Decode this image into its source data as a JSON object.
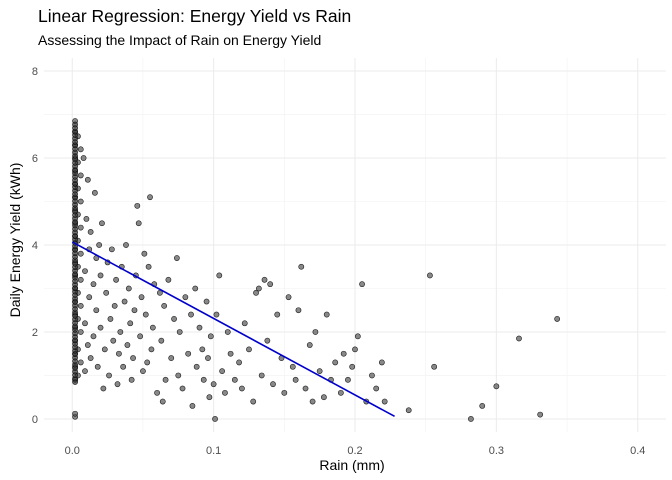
{
  "chart_data": {
    "type": "scatter",
    "title": "Linear Regression: Energy Yield vs Rain",
    "subtitle": "Assessing the Impact of Rain on Energy Yield",
    "xlabel": "Rain (mm)",
    "ylabel": "Daily Energy Yield (kWh)",
    "xlim": [
      -0.02,
      0.42
    ],
    "ylim": [
      -0.3,
      8.3
    ],
    "x_ticks": [
      0.0,
      0.1,
      0.2,
      0.3,
      0.4
    ],
    "x_tick_labels": [
      "0.0",
      "0.1",
      "0.2",
      "0.3",
      "0.4"
    ],
    "y_ticks": [
      0,
      2,
      4,
      6,
      8
    ],
    "y_tick_labels": [
      "0",
      "2",
      "4",
      "6",
      "8"
    ],
    "grid": true,
    "point_color": "#555555",
    "line_color": "#0000cc",
    "regression_line": {
      "x": [
        0.0,
        0.228
      ],
      "y": [
        4.07,
        0.06
      ]
    },
    "series": [
      {
        "points": [
          [
            0.002,
            0.05
          ],
          [
            0.002,
            0.12
          ],
          [
            0.002,
            0.9
          ],
          [
            0.002,
            1.2
          ],
          [
            0.002,
            1.5
          ],
          [
            0.002,
            1.8
          ],
          [
            0.002,
            2.1
          ],
          [
            0.002,
            2.4
          ],
          [
            0.002,
            2.7
          ],
          [
            0.002,
            3.0
          ],
          [
            0.002,
            3.3
          ],
          [
            0.002,
            3.6
          ],
          [
            0.002,
            3.9
          ],
          [
            0.002,
            4.2
          ],
          [
            0.002,
            4.5
          ],
          [
            0.002,
            4.8
          ],
          [
            0.002,
            5.1
          ],
          [
            0.002,
            5.4
          ],
          [
            0.002,
            5.7
          ],
          [
            0.002,
            6.0
          ],
          [
            0.002,
            6.3
          ],
          [
            0.002,
            6.6
          ],
          [
            0.002,
            6.85
          ],
          [
            0.004,
            1.0
          ],
          [
            0.004,
            1.6
          ],
          [
            0.004,
            2.3
          ],
          [
            0.004,
            2.9
          ],
          [
            0.004,
            3.5
          ],
          [
            0.004,
            4.1
          ],
          [
            0.004,
            4.7
          ],
          [
            0.004,
            5.3
          ],
          [
            0.004,
            5.9
          ],
          [
            0.004,
            6.5
          ],
          [
            0.006,
            1.3
          ],
          [
            0.006,
            2.0
          ],
          [
            0.006,
            2.6
          ],
          [
            0.006,
            3.2
          ],
          [
            0.006,
            3.8
          ],
          [
            0.006,
            4.4
          ],
          [
            0.006,
            5.0
          ],
          [
            0.006,
            5.6
          ],
          [
            0.006,
            6.2
          ],
          [
            0.008,
            6.0
          ],
          [
            0.009,
            1.1
          ],
          [
            0.009,
            2.2
          ],
          [
            0.009,
            3.4
          ],
          [
            0.01,
            4.6
          ],
          [
            0.011,
            5.5
          ],
          [
            0.011,
            1.7
          ],
          [
            0.012,
            2.8
          ],
          [
            0.012,
            3.9
          ],
          [
            0.013,
            1.4
          ],
          [
            0.013,
            4.3
          ],
          [
            0.015,
            1.9
          ],
          [
            0.015,
            3.1
          ],
          [
            0.016,
            5.2
          ],
          [
            0.017,
            2.5
          ],
          [
            0.017,
            3.7
          ],
          [
            0.018,
            1.2
          ],
          [
            0.019,
            4.0
          ],
          [
            0.02,
            2.1
          ],
          [
            0.02,
            3.3
          ],
          [
            0.021,
            4.5
          ],
          [
            0.022,
            0.7
          ],
          [
            0.023,
            1.6
          ],
          [
            0.024,
            2.9
          ],
          [
            0.025,
            3.6
          ],
          [
            0.026,
            1.0
          ],
          [
            0.027,
            2.3
          ],
          [
            0.028,
            3.9
          ],
          [
            0.029,
            1.8
          ],
          [
            0.03,
            2.6
          ],
          [
            0.031,
            3.2
          ],
          [
            0.032,
            0.8
          ],
          [
            0.033,
            1.5
          ],
          [
            0.034,
            2.0
          ],
          [
            0.035,
            3.5
          ],
          [
            0.036,
            1.2
          ],
          [
            0.037,
            2.7
          ],
          [
            0.038,
            4.0
          ],
          [
            0.039,
            1.7
          ],
          [
            0.04,
            3.0
          ],
          [
            0.041,
            2.2
          ],
          [
            0.042,
            0.9
          ],
          [
            0.043,
            1.4
          ],
          [
            0.044,
            2.5
          ],
          [
            0.045,
            3.3
          ],
          [
            0.046,
            4.9
          ],
          [
            0.047,
            4.5
          ],
          [
            0.048,
            1.9
          ],
          [
            0.049,
            2.8
          ],
          [
            0.05,
            1.1
          ],
          [
            0.051,
            3.8
          ],
          [
            0.052,
            2.4
          ],
          [
            0.053,
            1.3
          ],
          [
            0.054,
            3.5
          ],
          [
            0.055,
            5.1
          ],
          [
            0.056,
            1.6
          ],
          [
            0.057,
            2.1
          ],
          [
            0.058,
            3.1
          ],
          [
            0.06,
            0.6
          ],
          [
            0.062,
            2.9
          ],
          [
            0.063,
            1.8
          ],
          [
            0.064,
            0.4
          ],
          [
            0.065,
            2.6
          ],
          [
            0.066,
            0.9
          ],
          [
            0.068,
            3.2
          ],
          [
            0.07,
            1.4
          ],
          [
            0.072,
            2.3
          ],
          [
            0.074,
            3.7
          ],
          [
            0.075,
            1.0
          ],
          [
            0.076,
            2.0
          ],
          [
            0.078,
            0.7
          ],
          [
            0.08,
            2.8
          ],
          [
            0.082,
            1.5
          ],
          [
            0.084,
            2.4
          ],
          [
            0.085,
            0.3
          ],
          [
            0.087,
            3.0
          ],
          [
            0.088,
            1.2
          ],
          [
            0.09,
            2.1
          ],
          [
            0.092,
            1.6
          ],
          [
            0.093,
            0.9
          ],
          [
            0.095,
            2.7
          ],
          [
            0.096,
            1.4
          ],
          [
            0.097,
            0.5
          ],
          [
            0.098,
            1.9
          ],
          [
            0.1,
            0.8
          ],
          [
            0.101,
            0.0
          ],
          [
            0.102,
            2.4
          ],
          [
            0.104,
            3.3
          ],
          [
            0.106,
            1.1
          ],
          [
            0.108,
            0.6
          ],
          [
            0.11,
            2.0
          ],
          [
            0.112,
            1.5
          ],
          [
            0.115,
            0.9
          ],
          [
            0.118,
            1.3
          ],
          [
            0.12,
            0.7
          ],
          [
            0.122,
            2.2
          ],
          [
            0.125,
            1.6
          ],
          [
            0.128,
            0.4
          ],
          [
            0.13,
            2.9
          ],
          [
            0.132,
            3.0
          ],
          [
            0.134,
            1.0
          ],
          [
            0.136,
            3.2
          ],
          [
            0.138,
            1.8
          ],
          [
            0.14,
            3.1
          ],
          [
            0.142,
            0.8
          ],
          [
            0.145,
            2.4
          ],
          [
            0.148,
            1.4
          ],
          [
            0.15,
            0.6
          ],
          [
            0.153,
            2.8
          ],
          [
            0.156,
            1.2
          ],
          [
            0.158,
            0.9
          ],
          [
            0.16,
            2.5
          ],
          [
            0.162,
            3.5
          ],
          [
            0.165,
            0.7
          ],
          [
            0.168,
            1.7
          ],
          [
            0.17,
            0.4
          ],
          [
            0.172,
            2.0
          ],
          [
            0.175,
            1.1
          ],
          [
            0.178,
            0.5
          ],
          [
            0.18,
            2.4
          ],
          [
            0.183,
            0.9
          ],
          [
            0.186,
            1.3
          ],
          [
            0.19,
            0.6
          ],
          [
            0.192,
            1.5
          ],
          [
            0.195,
            0.9
          ],
          [
            0.198,
            1.2
          ],
          [
            0.2,
            1.6
          ],
          [
            0.202,
            1.9
          ],
          [
            0.205,
            3.1
          ],
          [
            0.208,
            0.4
          ],
          [
            0.212,
            1.0
          ],
          [
            0.215,
            0.7
          ],
          [
            0.219,
            1.3
          ],
          [
            0.221,
            0.4
          ],
          [
            0.238,
            0.2
          ],
          [
            0.253,
            3.3
          ],
          [
            0.256,
            1.2
          ],
          [
            0.282,
            0.0
          ],
          [
            0.29,
            0.3
          ],
          [
            0.3,
            0.75
          ],
          [
            0.316,
            1.85
          ],
          [
            0.331,
            0.1
          ],
          [
            0.343,
            2.3
          ]
        ]
      }
    ]
  }
}
